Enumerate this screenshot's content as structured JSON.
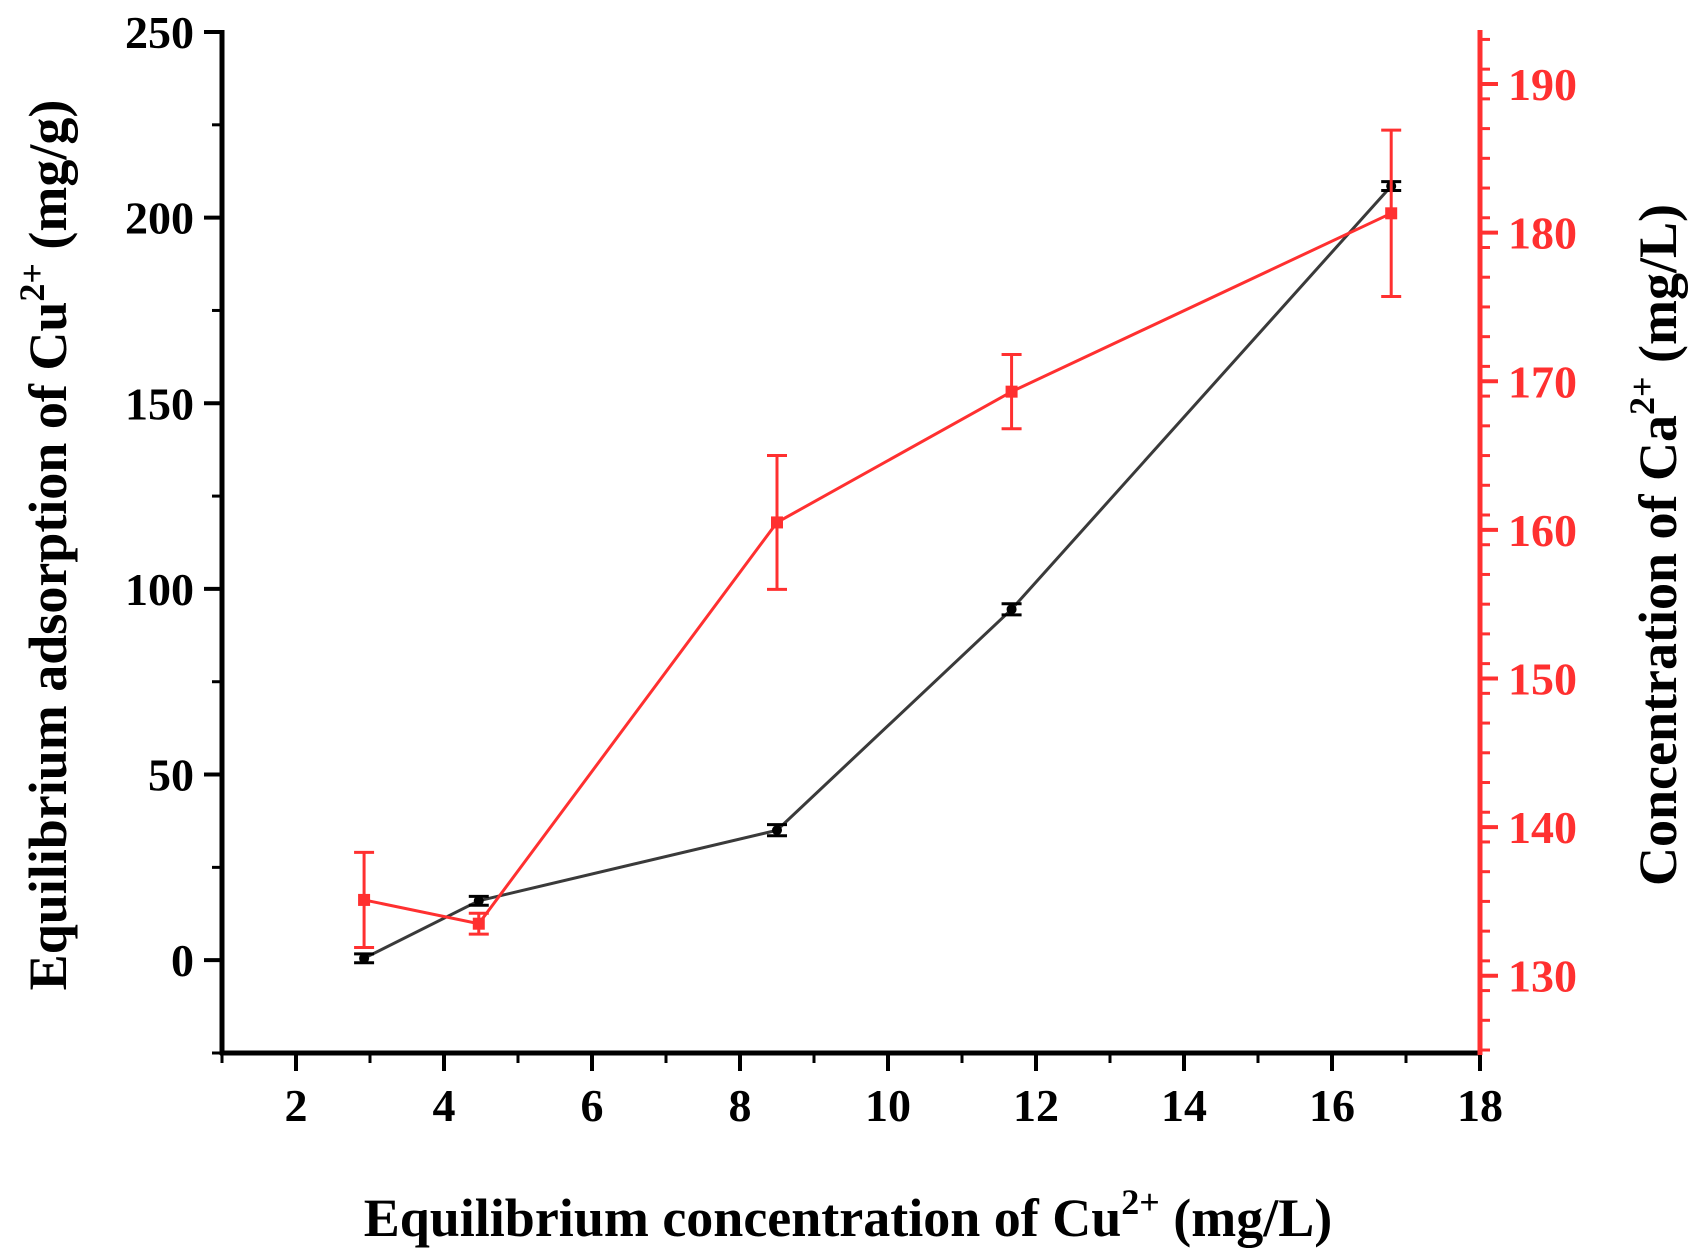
{
  "chart_data": {
    "type": "line",
    "xlabel": {
      "prefix": "Equilibrium concentration of Cu",
      "sup": "2+",
      "suffix": " (mg/L)"
    },
    "ylabel_left": {
      "prefix": "Equilibrium adsorption of Cu",
      "sup": "2+",
      "suffix": " (mg/g)"
    },
    "ylabel_right": {
      "prefix": "Concentration of Ca",
      "sup": "2+",
      "suffix": " (mg/L)"
    },
    "xlim": [
      1,
      18
    ],
    "ylim_left": [
      -25,
      250
    ],
    "ylim_right": [
      124.8,
      193.5
    ],
    "x_ticks": [
      2,
      4,
      6,
      8,
      10,
      12,
      14,
      16,
      18
    ],
    "x_tick_labels": [
      "2",
      "4",
      "6",
      "8",
      "10",
      "12",
      "14",
      "16",
      "18"
    ],
    "y_left_ticks": [
      0,
      50,
      100,
      150,
      200,
      250
    ],
    "y_left_tick_labels": [
      "0",
      "50",
      "100",
      "150",
      "200",
      "250"
    ],
    "y_right_ticks": [
      130,
      140,
      150,
      160,
      170,
      180,
      190
    ],
    "y_right_tick_labels": [
      "130",
      "140",
      "150",
      "160",
      "170",
      "180",
      "190"
    ],
    "colors": {
      "axis": "#000000",
      "series_left": "#3a3a3a",
      "series_right": "#ff3030",
      "right_axis": "#ff3030"
    },
    "series": [
      {
        "name": "Cu2+ adsorption",
        "axis": "left",
        "x": [
          2.92,
          4.47,
          8.5,
          11.67,
          16.8
        ],
        "y": [
          0.5,
          16,
          35,
          94.5,
          208.5
        ],
        "err": [
          1.2,
          1.2,
          1.5,
          1.5,
          1.2
        ],
        "marker": "circle"
      },
      {
        "name": "Ca2+ concentration",
        "axis": "right",
        "x": [
          2.92,
          4.47,
          8.5,
          11.67,
          16.8
        ],
        "y": [
          135.1,
          133.5,
          160.5,
          169.3,
          181.3
        ],
        "err": [
          3.2,
          0.7,
          4.5,
          2.5,
          5.6
        ],
        "marker": "square"
      }
    ]
  }
}
